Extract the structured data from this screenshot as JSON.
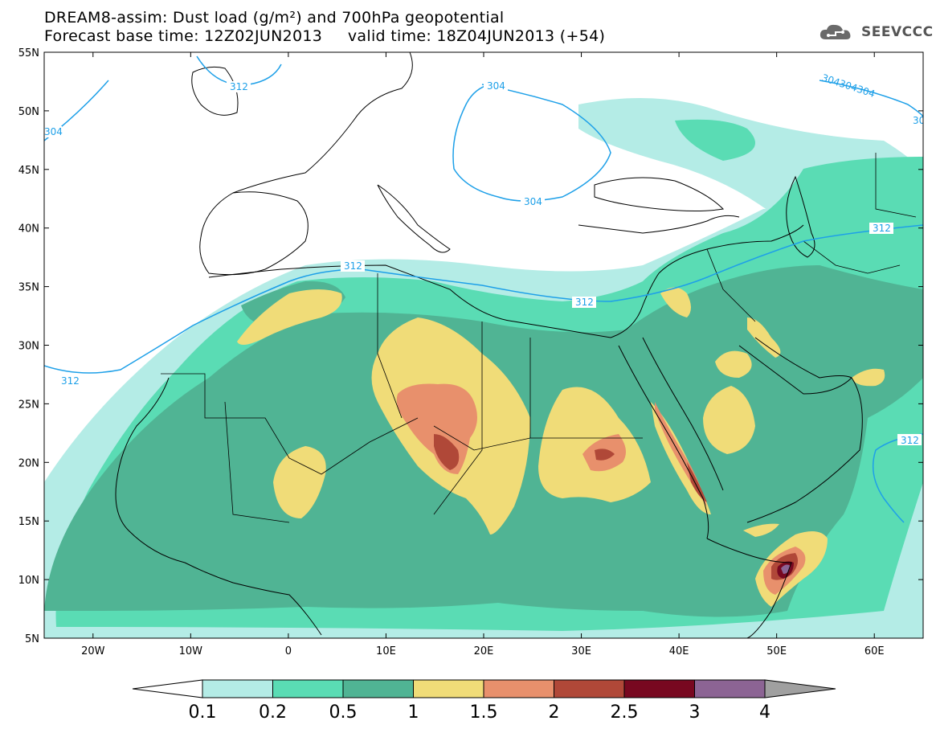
{
  "title": {
    "line1": "DREAM8-assim: Dust load (g/m²) and 700hPa geopotential",
    "line2_base": "Forecast base time: 12Z02JUN2013",
    "line2_valid": "valid time: 18Z04JUN2013 (+54)"
  },
  "logo": {
    "text": "SEEVCCC",
    "icon": "cloud-icon"
  },
  "axes": {
    "lat_labels": [
      "55N",
      "50N",
      "45N",
      "40N",
      "35N",
      "30N",
      "25N",
      "20N",
      "15N",
      "10N",
      "5N"
    ],
    "lon_labels": [
      "20W",
      "10W",
      "0",
      "10E",
      "20E",
      "30E",
      "40E",
      "50E",
      "60E"
    ],
    "lon_range": [
      -25,
      65
    ],
    "lat_range": [
      5,
      55
    ]
  },
  "colors": {
    "levels": [
      "#b4ece6",
      "#5adcb4",
      "#50b494",
      "#f0dc78",
      "#e8906c",
      "#b04838",
      "#780820",
      "#8c6494",
      "#a0a0a0"
    ],
    "contour": "#1ea0e8",
    "coast": "#000000"
  },
  "colorbar": {
    "labels": [
      "0.1",
      "0.2",
      "0.5",
      "1",
      "1.5",
      "2",
      "2.5",
      "3",
      "4"
    ]
  },
  "contour_labels": [
    "312",
    "304",
    "304",
    "304",
    "312",
    "312",
    "312",
    "312",
    "304304304",
    "30",
    "312"
  ]
}
